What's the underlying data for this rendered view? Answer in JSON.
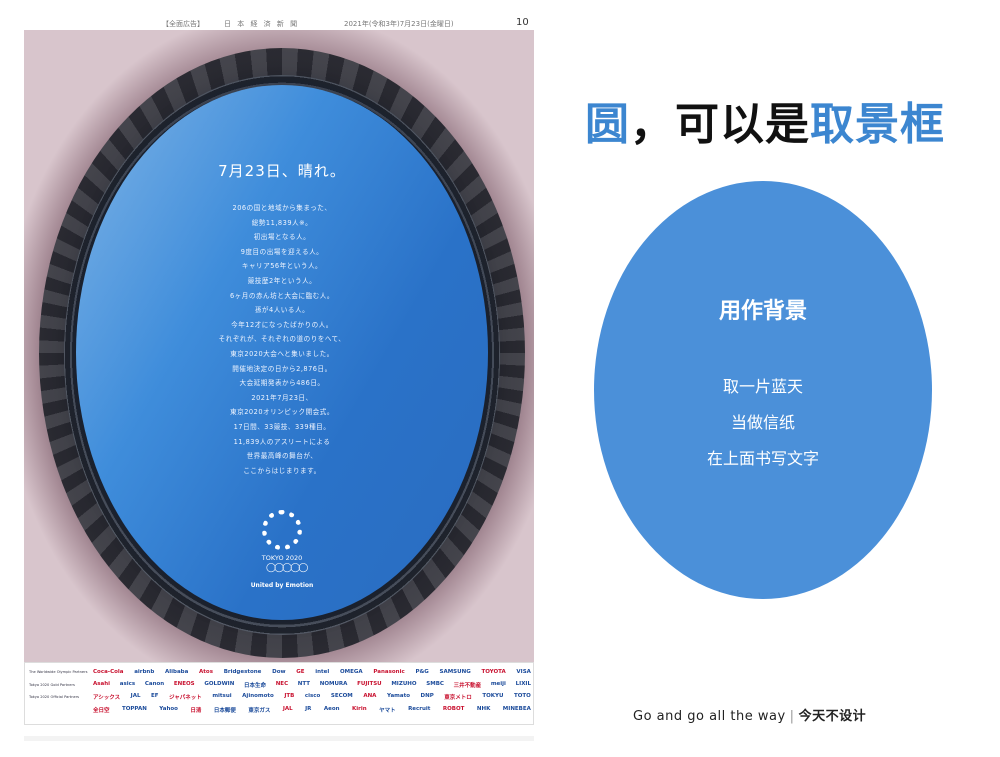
{
  "newspaper": {
    "masthead": {
      "section": "【全面広告】",
      "name": "日 本 経 済 新 聞",
      "date": "2021年(令和3年)7月23日(金曜日)",
      "page": "10"
    },
    "headline": "7月23日、晴れ。",
    "body_lines": [
      "206の国と地域から集まった、",
      "総勢11,839人※。",
      "初出場となる人。",
      "9度目の出場を迎える人。",
      "キャリア56年という人。",
      "競技歴2年という人。",
      "6ヶ月の赤ん坊と大会に臨む人。",
      "孫が4人いる人。",
      "今年12才になったばかりの人。",
      "それぞれが、それぞれの道のりをへて、",
      "東京2020大会へと集いました。",
      "開催地決定の日から2,876日。",
      "大会延期発表から486日。",
      "2021年7月23日、",
      "東京2020オリンピック開会式。",
      "17日間、33競技、339種目。",
      "11,839人のアスリートによる",
      "世界最高峰の舞台が、",
      "ここからはじまります。"
    ],
    "emblem_text": "TOKYO 2020",
    "rings_symbol": "◯◯◯◯◯",
    "tagline": "United by Emotion",
    "sponsor_rows": [
      {
        "category": "The Worldwide Olympic Partners",
        "logos": [
          "Coca-Cola",
          "airbnb",
          "Alibaba",
          "Atos",
          "Bridgestone",
          "Dow",
          "GE",
          "intel",
          "OMEGA",
          "Panasonic",
          "P&G",
          "SAMSUNG",
          "TOYOTA",
          "VISA"
        ]
      },
      {
        "category": "Tokyo 2020 Gold Partners",
        "logos": [
          "Asahi",
          "asics",
          "Canon",
          "ENEOS",
          "GOLDWIN",
          "日本生命",
          "NEC",
          "NTT",
          "NOMURA",
          "FUJITSU",
          "MIZUHO",
          "SMBC",
          "三井不動産",
          "meiji",
          "LIXIL"
        ]
      },
      {
        "category": "Tokyo 2020 Official Partners",
        "logos": [
          "アシックス",
          "JAL",
          "EF",
          "ジャパネット",
          "mitsui",
          "Ajinomoto",
          "JTB",
          "cisco",
          "SECOM",
          "ANA",
          "Yamato",
          "DNP",
          "東京メトロ",
          "TOKYU",
          "TOTO"
        ]
      },
      {
        "category": "",
        "logos": [
          "全日空",
          "TOPPAN",
          "Yahoo",
          "日清",
          "日本郵便",
          "東京ガス",
          "JAL",
          "JR",
          "Aeon",
          "Kirin",
          "ヤマト",
          "Recruit",
          "ROBOT",
          "NHK",
          "MINEBEA"
        ]
      }
    ]
  },
  "slide": {
    "title_parts": [
      {
        "text": "圆",
        "color": "#3c86d0"
      },
      {
        "text": "，可以是",
        "color": "#111111"
      },
      {
        "text": "取景框",
        "color": "#3c86d0"
      }
    ],
    "oval": {
      "color": "#4b90d9",
      "title": "用作背景",
      "lines": [
        "取一片蓝天",
        "当做信纸",
        "在上面书写文字"
      ]
    },
    "footer": {
      "english": "Go and go all the way",
      "separator": "|",
      "chinese": "今天不设计"
    }
  }
}
